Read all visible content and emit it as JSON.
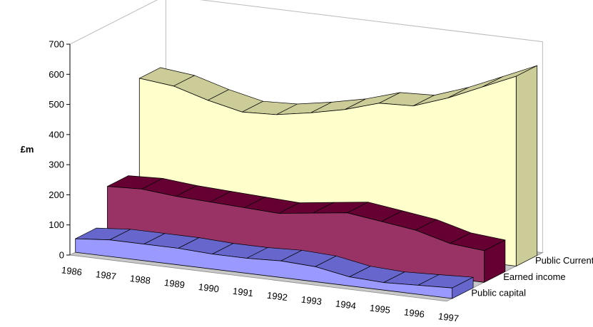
{
  "chart_data": {
    "type": "area",
    "title": "",
    "ylabel": "£m",
    "xlabel": "",
    "ylim": [
      0,
      700
    ],
    "yticks": [
      0,
      100,
      200,
      300,
      400,
      500,
      600,
      700
    ],
    "categories": [
      "1986",
      "1987",
      "1988",
      "1989",
      "1990",
      "1991",
      "1992",
      "1993",
      "1994",
      "1995",
      "1996",
      "1997"
    ],
    "series": [
      {
        "name": "Public Current",
        "color": "#ffffcc",
        "topColor": "#cccc99",
        "values": [
          470,
          458,
          425,
          400,
          405,
          425,
          450,
          485,
          490,
          530,
          580,
          630
        ]
      },
      {
        "name": "Earned income",
        "color": "#993366",
        "topColor": "#660033",
        "values": [
          165,
          170,
          160,
          155,
          150,
          145,
          160,
          175,
          160,
          145,
          115,
          105
        ]
      },
      {
        "name": "Public capital",
        "color": "#9999ff",
        "topColor": "#6666cc",
        "values": [
          45,
          55,
          55,
          55,
          50,
          50,
          55,
          50,
          30,
          25,
          30,
          35
        ]
      }
    ],
    "grid": false,
    "legend": "right"
  }
}
